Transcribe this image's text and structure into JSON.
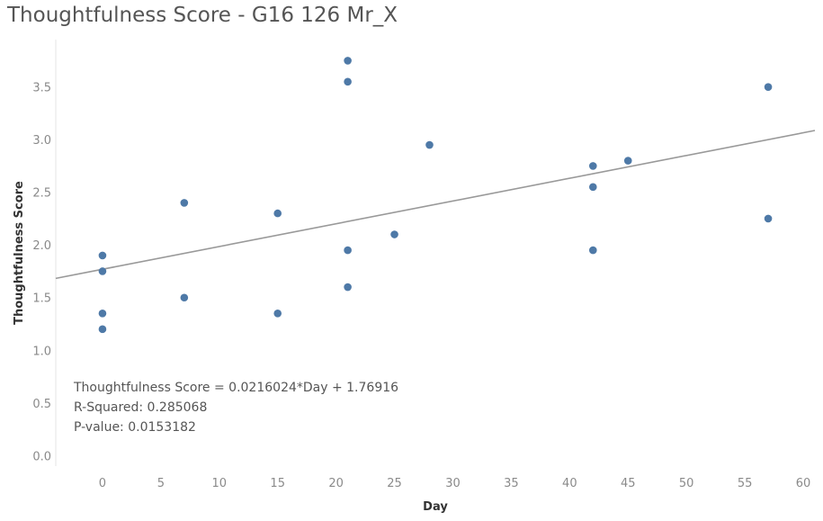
{
  "chart_data": {
    "type": "scatter",
    "title": "Thoughtfulness Score - G16 126 Mr_X",
    "xlabel": "Day",
    "ylabel": "Thoughtfulness Score",
    "xlim": [
      -4,
      61
    ],
    "ylim": [
      -0.1,
      3.95
    ],
    "x_ticks": [
      0,
      5,
      10,
      15,
      20,
      25,
      30,
      35,
      40,
      45,
      50,
      55,
      60
    ],
    "y_ticks": [
      0.0,
      0.5,
      1.0,
      1.5,
      2.0,
      2.5,
      3.0,
      3.5
    ],
    "y_tick_labels": [
      "0.0",
      "0.5",
      "1.0",
      "1.5",
      "2.0",
      "2.5",
      "3.0",
      "3.5"
    ],
    "grid": false,
    "point_color": "#4e79a7",
    "trend_color": "#999999",
    "points": [
      {
        "x": 0,
        "y": 1.9
      },
      {
        "x": 0,
        "y": 1.75
      },
      {
        "x": 0,
        "y": 1.35
      },
      {
        "x": 0,
        "y": 1.2
      },
      {
        "x": 7,
        "y": 2.4
      },
      {
        "x": 7,
        "y": 1.5
      },
      {
        "x": 15,
        "y": 2.3
      },
      {
        "x": 15,
        "y": 1.35
      },
      {
        "x": 21,
        "y": 3.75
      },
      {
        "x": 21,
        "y": 3.55
      },
      {
        "x": 21,
        "y": 1.95
      },
      {
        "x": 21,
        "y": 1.6
      },
      {
        "x": 25,
        "y": 2.1
      },
      {
        "x": 28,
        "y": 2.95
      },
      {
        "x": 42,
        "y": 2.75
      },
      {
        "x": 42,
        "y": 2.55
      },
      {
        "x": 42,
        "y": 1.95
      },
      {
        "x": 45,
        "y": 2.8
      },
      {
        "x": 57,
        "y": 3.5
      },
      {
        "x": 57,
        "y": 2.25
      }
    ],
    "trend_line": {
      "slope": 0.0216024,
      "intercept": 1.76916
    },
    "annotations": [
      "Thoughtfulness Score = 0.0216024*Day + 1.76916",
      "R-Squared: 0.285068",
      "P-value: 0.0153182"
    ]
  }
}
